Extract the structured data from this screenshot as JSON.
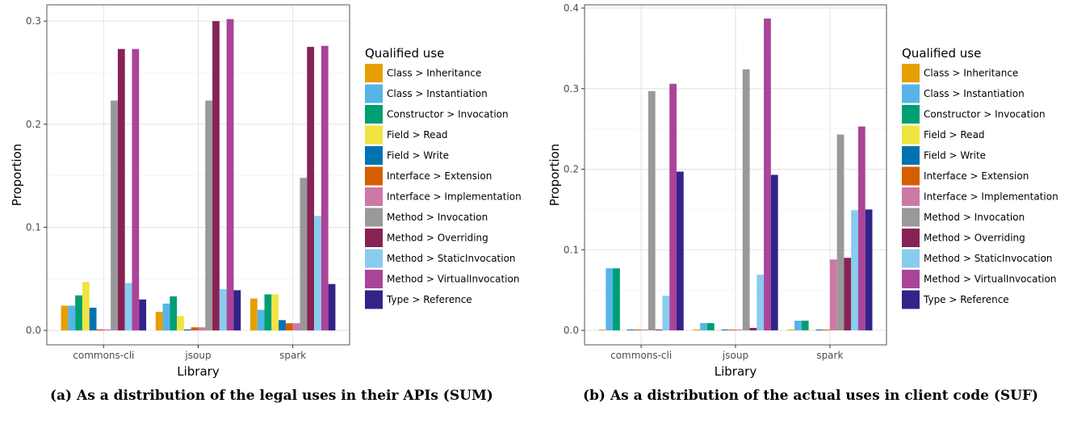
{
  "chart_data": [
    {
      "type": "bar",
      "categories": [
        "commons-cli",
        "jsoup",
        "spark"
      ],
      "xlabel": "Library",
      "ylabel": "Proportion",
      "ylim": [
        -0.014,
        0.3158
      ],
      "yticks": [
        0.0,
        0.1,
        0.2,
        0.3
      ],
      "ytick_labels": [
        "0.0",
        "0.1",
        "0.2",
        "0.3"
      ],
      "grid": true,
      "legend_title": "Qualified use",
      "legend_position": "right",
      "caption": "(a) As a distribution of the legal uses in their APIs (SUM)",
      "series": [
        {
          "name": "Class > Inheritance",
          "color": "#E69F00",
          "values": [
            0.024,
            0.018,
            0.031
          ]
        },
        {
          "name": "Class > Instantiation",
          "color": "#56B4E9",
          "values": [
            0.024,
            0.026,
            0.02
          ]
        },
        {
          "name": "Constructor > Invocation",
          "color": "#009E73",
          "values": [
            0.034,
            0.033,
            0.035
          ]
        },
        {
          "name": "Field > Read",
          "color": "#F0E442",
          "values": [
            0.047,
            0.014,
            0.035
          ]
        },
        {
          "name": "Field > Write",
          "color": "#0072B2",
          "values": [
            0.022,
            0.001,
            0.01
          ]
        },
        {
          "name": "Interface > Extension",
          "color": "#D55E00",
          "values": [
            0.001,
            0.003,
            0.007
          ]
        },
        {
          "name": "Interface > Implementation",
          "color": "#CC79A7",
          "values": [
            0.001,
            0.003,
            0.007
          ]
        },
        {
          "name": "Method > Invocation",
          "color": "#999999",
          "values": [
            0.223,
            0.223,
            0.148
          ]
        },
        {
          "name": "Method > Overriding",
          "color": "#882255",
          "values": [
            0.273,
            0.3,
            0.275
          ]
        },
        {
          "name": "Method > StaticInvocation",
          "color": "#88CCEE",
          "values": [
            0.046,
            0.04,
            0.111
          ]
        },
        {
          "name": "Method > VirtualInvocation",
          "color": "#AA4499",
          "values": [
            0.273,
            0.302,
            0.276
          ]
        },
        {
          "name": "Type > Reference",
          "color": "#332288",
          "values": [
            0.03,
            0.039,
            0.045
          ]
        }
      ]
    },
    {
      "type": "bar",
      "categories": [
        "commons-cli",
        "jsoup",
        "spark"
      ],
      "xlabel": "Library",
      "ylabel": "Proportion",
      "ylim": [
        -0.018,
        0.404
      ],
      "yticks": [
        0.0,
        0.1,
        0.2,
        0.3,
        0.4
      ],
      "ytick_labels": [
        "0.0",
        "0.1",
        "0.2",
        "0.3",
        "0.4"
      ],
      "grid": true,
      "legend_title": "Qualified use",
      "legend_position": "right",
      "caption": "(b) As a distribution of the actual uses in client code (SUF)",
      "series": [
        {
          "name": "Class > Inheritance",
          "color": "#E69F00",
          "values": [
            0.001,
            0.001,
            0.001
          ]
        },
        {
          "name": "Class > Instantiation",
          "color": "#56B4E9",
          "values": [
            0.077,
            0.009,
            0.012
          ]
        },
        {
          "name": "Constructor > Invocation",
          "color": "#009E73",
          "values": [
            0.077,
            0.009,
            0.012
          ]
        },
        {
          "name": "Field > Read",
          "color": "#F0E442",
          "values": [
            0.0,
            0.0,
            0.0
          ]
        },
        {
          "name": "Field > Write",
          "color": "#0072B2",
          "values": [
            0.001,
            0.001,
            0.001
          ]
        },
        {
          "name": "Interface > Extension",
          "color": "#D55E00",
          "values": [
            0.001,
            0.001,
            0.001
          ]
        },
        {
          "name": "Interface > Implementation",
          "color": "#CC79A7",
          "values": [
            0.001,
            0.001,
            0.088
          ]
        },
        {
          "name": "Method > Invocation",
          "color": "#999999",
          "values": [
            0.297,
            0.324,
            0.243
          ]
        },
        {
          "name": "Method > Overriding",
          "color": "#882255",
          "values": [
            0.001,
            0.003,
            0.09
          ]
        },
        {
          "name": "Method > StaticInvocation",
          "color": "#88CCEE",
          "values": [
            0.043,
            0.069,
            0.149
          ]
        },
        {
          "name": "Method > VirtualInvocation",
          "color": "#AA4499",
          "values": [
            0.306,
            0.387,
            0.253
          ]
        },
        {
          "name": "Type > Reference",
          "color": "#332288",
          "values": [
            0.197,
            0.193,
            0.15
          ]
        }
      ]
    }
  ]
}
